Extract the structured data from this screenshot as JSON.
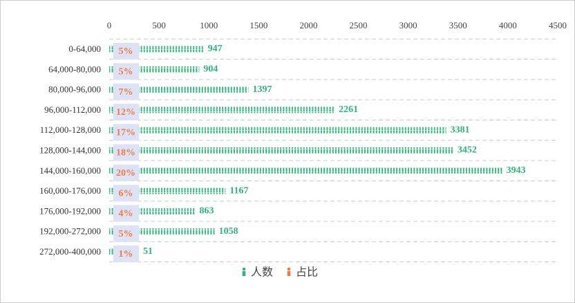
{
  "chart_data": {
    "type": "bar",
    "categories": [
      "0-64,000",
      "64,000-80,000",
      "80,000-96,000",
      "96,000-112,000",
      "112,000-128,000",
      "128,000-144,000",
      "144,000-160,000",
      "160,000-176,000",
      "176,000-192,000",
      "192,000-272,000",
      "272,000-400,000"
    ],
    "series": [
      {
        "name": "人数",
        "color": "#2fb57a",
        "values": [
          947,
          904,
          1397,
          2261,
          3381,
          3452,
          3943,
          1167,
          863,
          1058,
          51
        ]
      },
      {
        "name": "占比",
        "color": "#f07a46",
        "values": [
          5,
          5,
          7,
          12,
          17,
          18,
          20,
          6,
          4,
          5,
          1
        ],
        "value_labels": [
          "5%",
          "5%",
          "7%",
          "12%",
          "17%",
          "18%",
          "20%",
          "6%",
          "4%",
          "5%",
          "1%"
        ]
      }
    ],
    "xlim": [
      0,
      4500
    ],
    "xticks": [
      0,
      500,
      1000,
      1500,
      2000,
      2500,
      3000,
      3500,
      4000,
      4500
    ],
    "grid": true
  }
}
